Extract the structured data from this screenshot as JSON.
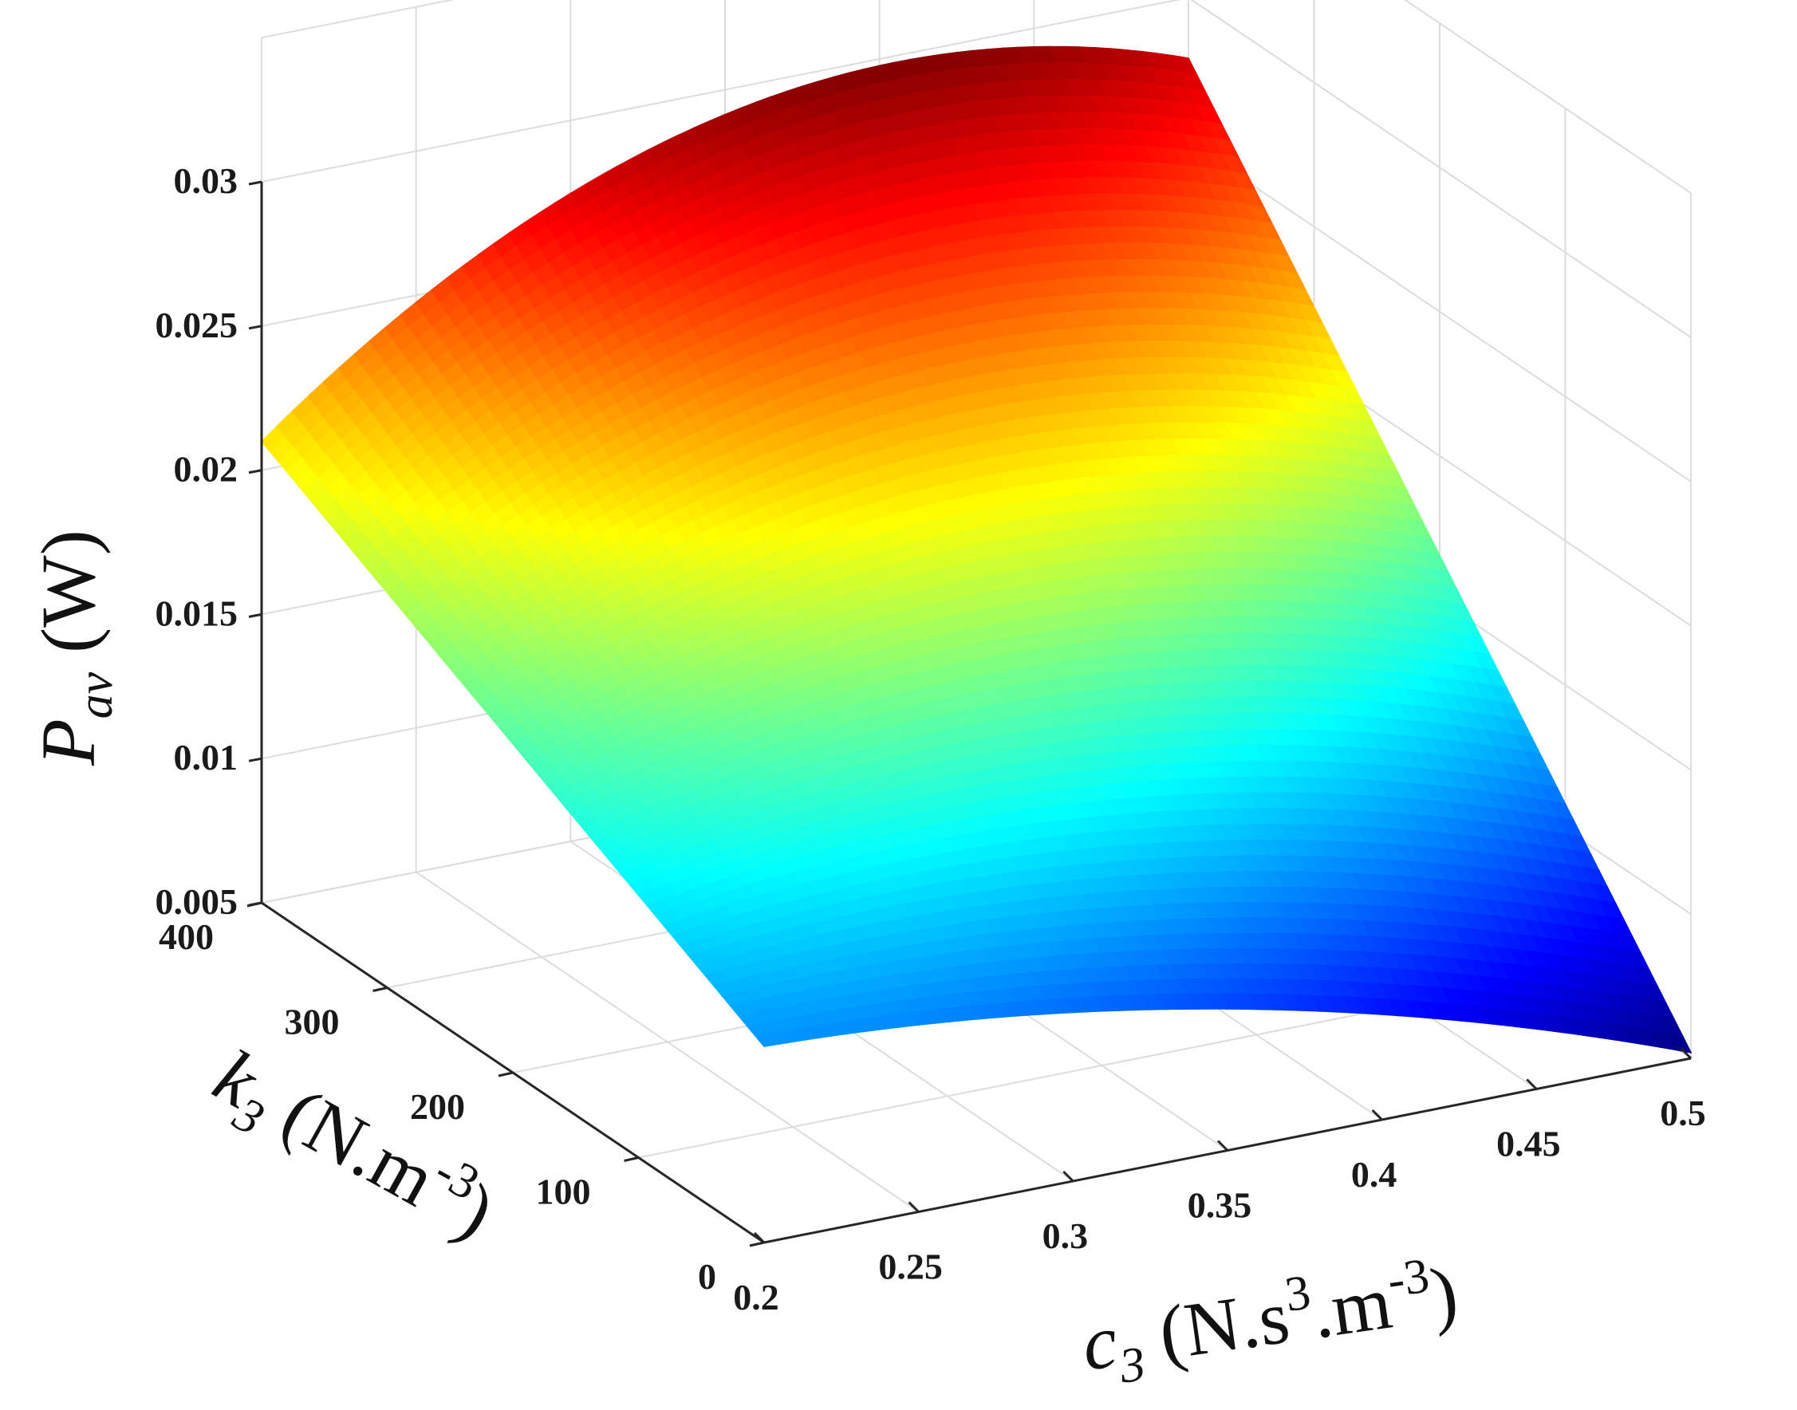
{
  "chart_data": {
    "type": "surface",
    "x": {
      "ticks": [
        "0.2",
        "0.25",
        "0.3",
        "0.35",
        "0.4",
        "0.45",
        "0.5"
      ],
      "range": [
        0.2,
        0.5
      ]
    },
    "y": {
      "ticks": [
        "0",
        "100",
        "200",
        "300",
        "400"
      ],
      "range": [
        0,
        400
      ]
    },
    "z": {
      "ticks": [
        "0.005",
        "0.01",
        "0.015",
        "0.02",
        "0.025",
        "0.03"
      ],
      "range": [
        0.005,
        0.03
      ]
    },
    "corner_values": [
      {
        "c3": 0.2,
        "k3": 400,
        "P_av": 0.021
      },
      {
        "c3": 0.5,
        "k3": 400,
        "P_av": 0.0279
      },
      {
        "c3": 0.2,
        "k3": 0,
        "P_av": 0.0118
      },
      {
        "c3": 0.5,
        "k3": 0,
        "P_av": 0.0052
      }
    ],
    "peak": {
      "c3": 0.37,
      "k3": 400,
      "P_av": 0.0296
    },
    "colormap": "jet",
    "grid": true,
    "xlabel": {
      "main": "c",
      "sub": "3",
      "unit": " (N.s",
      "sup1": "3",
      "mid": ".m",
      "sup2": "-3",
      "close": ")"
    },
    "ylabel": {
      "main": "k",
      "sub": "3",
      "unit": " (N.m",
      "sup": "-3",
      "close": ")"
    },
    "zlabel": {
      "main": "P",
      "sub": "av",
      "unit": " (W)"
    }
  }
}
